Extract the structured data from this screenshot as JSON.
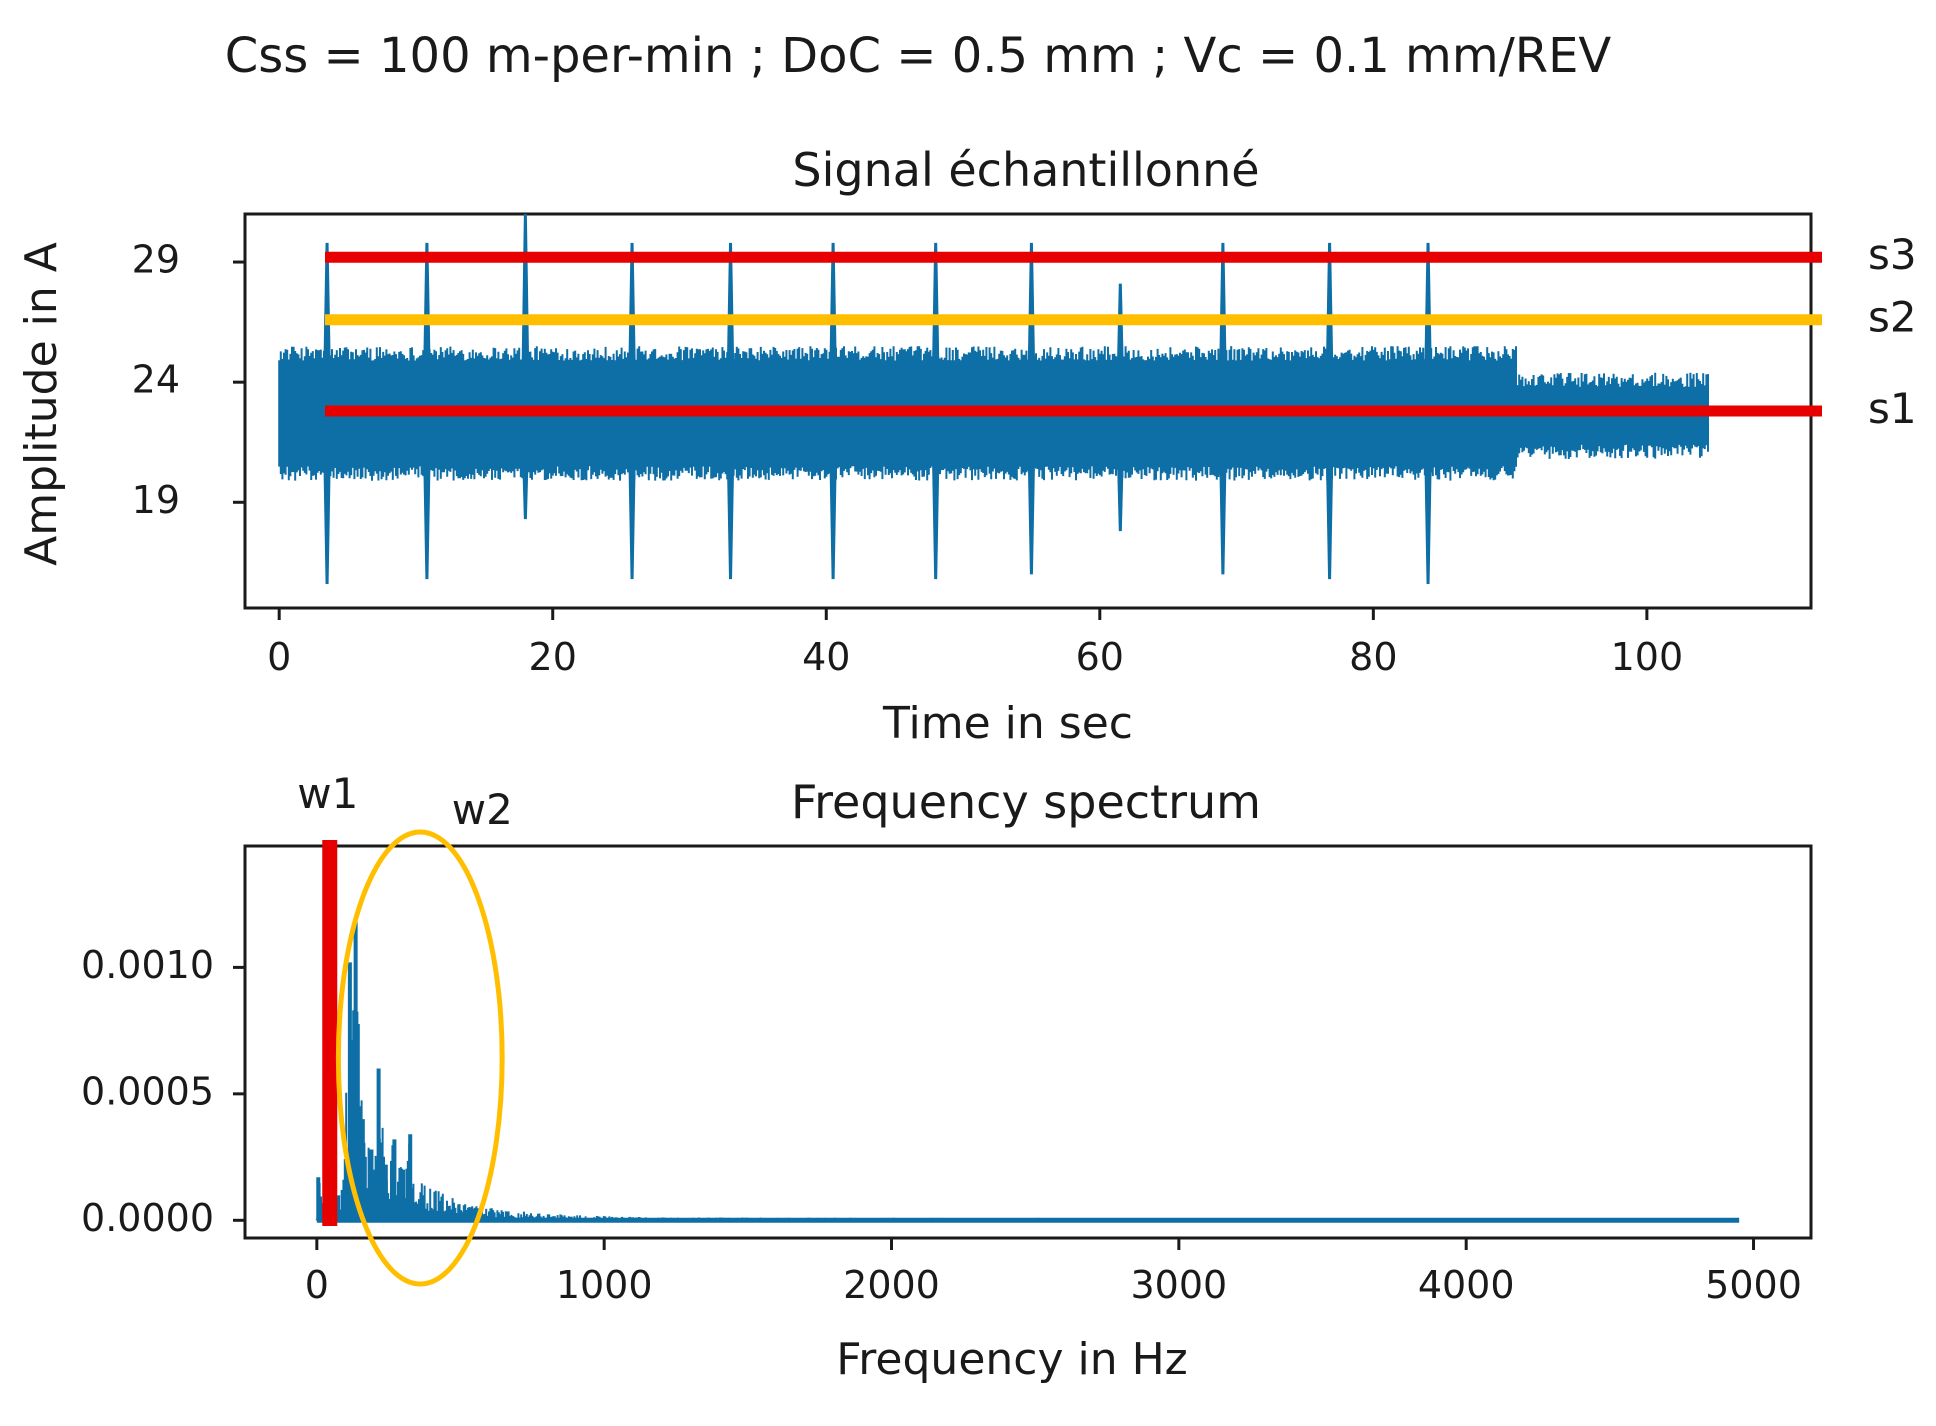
{
  "figure": {
    "suptitle": "Css = 100 m-per-min ; DoC = 0.5 mm ; Vc = 0.1 mm/REV"
  },
  "chart_data": [
    {
      "type": "line",
      "title": "Signal échantillonné",
      "xlabel": "Time in sec",
      "ylabel": "Amplitude in A",
      "xlim": [
        -2.5,
        112
      ],
      "ylim": [
        14.6,
        31
      ],
      "xticks": [
        0,
        20,
        40,
        60,
        80,
        100
      ],
      "xtick_labels": [
        "0",
        "20",
        "40",
        "60",
        "80",
        "100"
      ],
      "yticks": [
        19,
        24,
        29
      ],
      "ytick_labels": [
        "19",
        "24",
        "29"
      ],
      "color": "#0e6ea6",
      "signal": {
        "start": 0,
        "end": 104.5,
        "band_low_main": 20.5,
        "band_high_main": 24.9,
        "band_low_tail": 21.4,
        "band_high_tail": 23.8,
        "tail_start": 90.5
      },
      "spikes": [
        {
          "t": 3.5,
          "high": 29.8,
          "low": 15.6
        },
        {
          "t": 10.8,
          "high": 29.8,
          "low": 15.8
        },
        {
          "t": 18.0,
          "high": 31.0,
          "low": 18.3
        },
        {
          "t": 25.8,
          "high": 29.8,
          "low": 15.8
        },
        {
          "t": 33.0,
          "high": 29.8,
          "low": 15.8
        },
        {
          "t": 40.5,
          "high": 29.8,
          "low": 15.8
        },
        {
          "t": 48.0,
          "high": 29.8,
          "low": 15.8
        },
        {
          "t": 55.0,
          "high": 29.8,
          "low": 16.0
        },
        {
          "t": 61.5,
          "high": 28.1,
          "low": 17.8
        },
        {
          "t": 69.0,
          "high": 29.8,
          "low": 16.0
        },
        {
          "t": 76.8,
          "high": 29.8,
          "low": 15.8
        },
        {
          "t": 84.0,
          "high": 29.8,
          "low": 15.6
        }
      ],
      "thresholds": [
        {
          "name": "s3",
          "label": "s3",
          "y": 29.2,
          "color": "#e60000"
        },
        {
          "name": "s2",
          "label": "s2",
          "y": 26.6,
          "color": "#ffbf00"
        },
        {
          "name": "s1",
          "label": "s1",
          "y": 22.8,
          "color": "#e60000"
        }
      ]
    },
    {
      "type": "line",
      "title": "Frequency spectrum",
      "xlabel": "Frequency in Hz",
      "ylabel": "",
      "xlim": [
        -250,
        5200
      ],
      "ylim": [
        -7e-05,
        0.00148
      ],
      "xticks": [
        0,
        1000,
        2000,
        3000,
        4000,
        5000
      ],
      "xtick_labels": [
        "0",
        "1000",
        "2000",
        "3000",
        "4000",
        "5000"
      ],
      "yticks": [
        0,
        0.0005,
        0.001
      ],
      "ytick_labels": [
        "0.0000",
        "0.0005",
        "0.0010"
      ],
      "color": "#0e6ea6",
      "x_end": 4950,
      "peaks": [
        {
          "f": 5,
          "a": 0.00017
        },
        {
          "f": 40,
          "a": 0.00015
        },
        {
          "f": 90,
          "a": 0.00012
        },
        {
          "f": 115,
          "a": 0.00102
        },
        {
          "f": 135,
          "a": 0.00118
        },
        {
          "f": 160,
          "a": 0.0004
        },
        {
          "f": 190,
          "a": 0.00028
        },
        {
          "f": 215,
          "a": 0.0006
        },
        {
          "f": 240,
          "a": 0.00022
        },
        {
          "f": 270,
          "a": 0.00032
        },
        {
          "f": 300,
          "a": 0.0002
        },
        {
          "f": 325,
          "a": 0.00034
        },
        {
          "f": 355,
          "a": 0.00019
        },
        {
          "f": 400,
          "a": 0.00013
        },
        {
          "f": 450,
          "a": 0.0001
        },
        {
          "f": 500,
          "a": 8e-05
        },
        {
          "f": 560,
          "a": 6e-05
        },
        {
          "f": 650,
          "a": 4e-05
        },
        {
          "f": 780,
          "a": 3e-05
        },
        {
          "f": 900,
          "a": 2e-05
        },
        {
          "f": 1200,
          "a": 1.2e-05
        },
        {
          "f": 2000,
          "a": 1e-05
        },
        {
          "f": 3000,
          "a": 9e-06
        },
        {
          "f": 4000,
          "a": 8e-06
        },
        {
          "f": 4950,
          "a": 8e-06
        }
      ],
      "annotations": [
        {
          "name": "w1",
          "label": "w1",
          "shape": "vertical-bar",
          "f": 45,
          "color": "#e60000"
        },
        {
          "name": "w2",
          "label": "w2",
          "shape": "ellipse",
          "f_center": 360,
          "f_halfwidth": 285,
          "color": "#ffbf00"
        }
      ]
    }
  ]
}
